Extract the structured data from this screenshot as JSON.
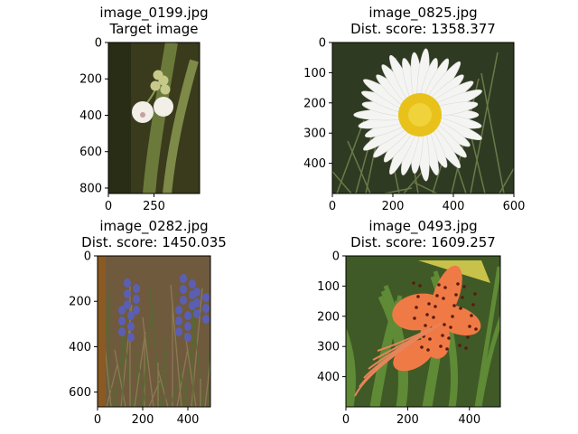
{
  "chart_data": [
    {
      "type": "image",
      "title": [
        "image_0199.jpg",
        "Target image"
      ],
      "image_description": "white lily-of-the-valley bells on green stem, dark background",
      "colors": {
        "bg": "#3a3a1c",
        "leaf": "#6b7a3a",
        "flower": "#f2eee8",
        "bud": "#c7c98a"
      },
      "xlim": [
        0,
        500
      ],
      "ylim": [
        0,
        830
      ],
      "x_ticks": [
        0,
        250
      ],
      "y_ticks": [
        0,
        200,
        400,
        600,
        800
      ]
    },
    {
      "type": "image",
      "title": [
        "image_0825.jpg",
        "Dist. score: 1358.377"
      ],
      "image_description": "white daisy with yellow center over grass",
      "colors": {
        "bg": "#2f3a22",
        "petal": "#f4f4f2",
        "center": "#e8c21a"
      },
      "xlim": [
        0,
        600
      ],
      "ylim": [
        0,
        500
      ],
      "x_ticks": [
        0,
        200,
        400,
        600
      ],
      "y_ticks": [
        0,
        100,
        200,
        300,
        400
      ]
    },
    {
      "type": "image",
      "title": [
        "image_0282.jpg",
        "Dist. score: 1450.035"
      ],
      "image_description": "bluebells among dry grass",
      "colors": {
        "bg": "#6f5a3e",
        "grass": "#556b2f",
        "flower": "#5b5fb3"
      },
      "xlim": [
        0,
        500
      ],
      "ylim": [
        0,
        665
      ],
      "x_ticks": [
        0,
        200,
        400
      ],
      "y_ticks": [
        0,
        200,
        400,
        600
      ]
    },
    {
      "type": "image",
      "title": [
        "image_0493.jpg",
        "Dist. score: 1609.257"
      ],
      "image_description": "orange tiger lily with dark spots over foliage",
      "colors": {
        "bg": "#3f5a26",
        "petal": "#f07a45",
        "spot": "#5a1a12"
      },
      "xlim": [
        0,
        500
      ],
      "ylim": [
        0,
        500
      ],
      "x_ticks": [
        0,
        200,
        400
      ],
      "y_ticks": [
        0,
        100,
        200,
        300,
        400
      ]
    }
  ]
}
